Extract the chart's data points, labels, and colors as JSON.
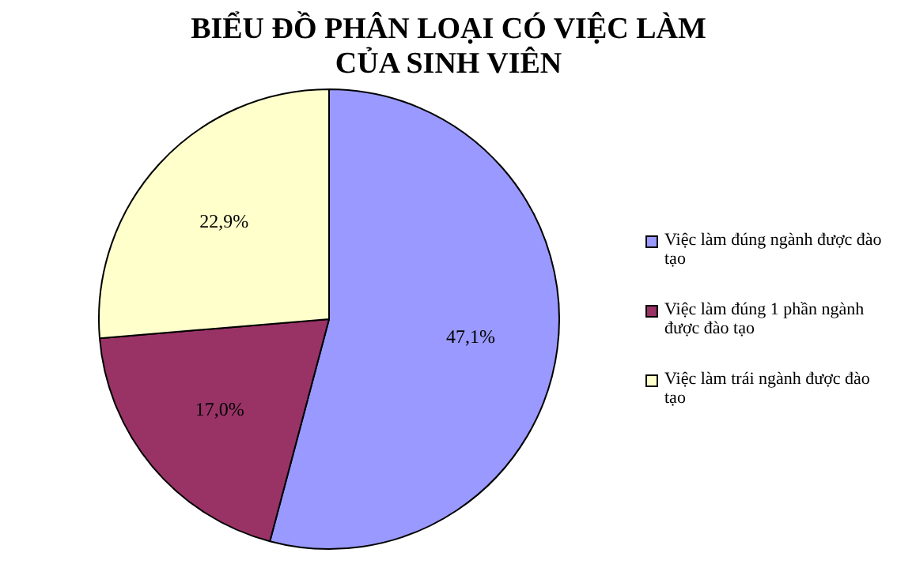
{
  "chart_data": {
    "type": "pie",
    "title": "BIỂU ĐỒ PHÂN LOẠI CÓ VIỆC LÀM CỦA SINH VIÊN",
    "categories": [
      "Việc làm đúng ngành được đào tạo",
      "Việc làm đúng 1 phần ngành được đào tạo",
      "Việc làm trái ngành được đào tạo"
    ],
    "values": [
      47.1,
      17.0,
      22.9
    ],
    "value_labels": [
      "47,1%",
      "17,0%",
      "22,9%"
    ],
    "colors": [
      "#9999ff",
      "#993366",
      "#ffffcc"
    ],
    "legend": "right"
  }
}
